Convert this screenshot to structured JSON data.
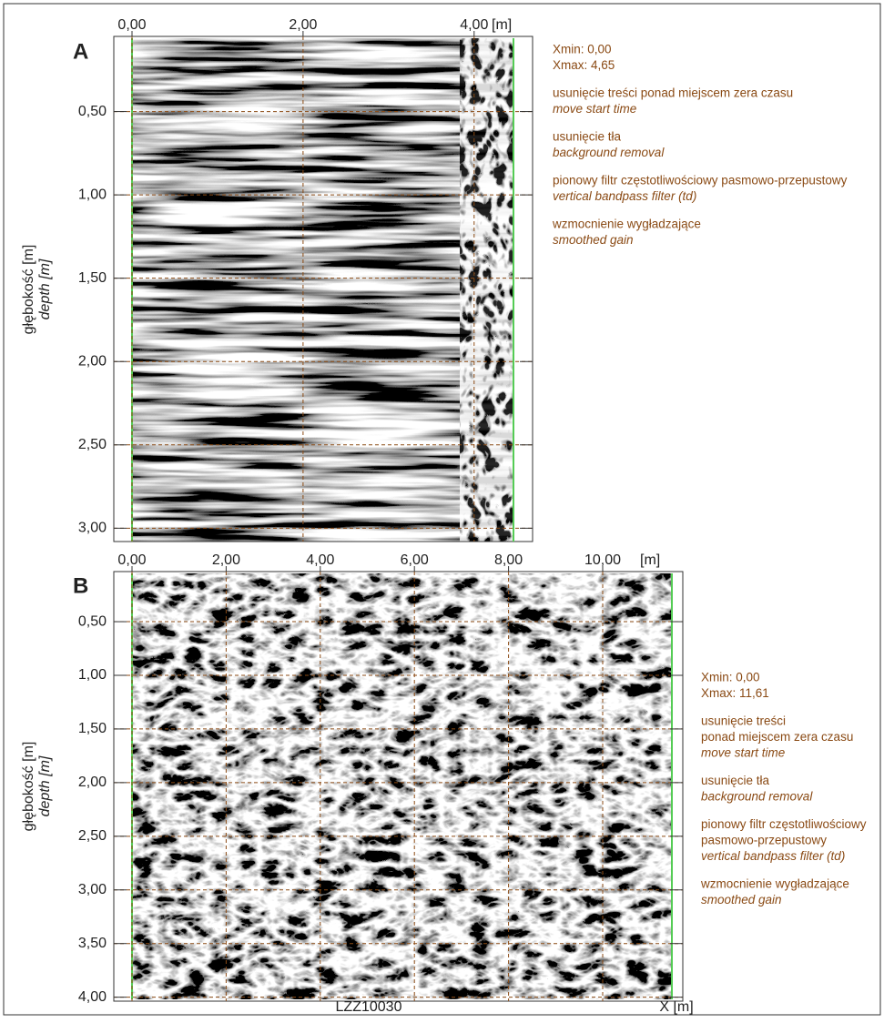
{
  "chart_data": [
    {
      "type": "radargram",
      "label": "A",
      "x_unit": "[m]",
      "ylabel": "głębokość [m]",
      "ylabel2": "depth [m]",
      "xlim": [
        0,
        4.46
      ],
      "ylim": [
        0.06,
        3.08
      ],
      "xticks": [
        {
          "value": 0,
          "label": "0,00"
        },
        {
          "value": 2,
          "label": "2,00"
        },
        {
          "value": 4,
          "label": "4,00"
        }
      ],
      "yticks": [
        {
          "value": 0.5,
          "label": "0,50"
        },
        {
          "value": 1,
          "label": "1,00"
        },
        {
          "value": 1.5,
          "label": "1,50"
        },
        {
          "value": 2,
          "label": "2,00"
        },
        {
          "value": 2.5,
          "label": "2,50"
        },
        {
          "value": 3,
          "label": "3,00"
        }
      ],
      "notes": [
        {
          "text": [
            "Xmin: 0,00",
            "Xmax: 4,65"
          ]
        },
        {
          "text": [
            "usunięcie treści ponad miejscem zera czasu"
          ],
          "italic": "move start time"
        },
        {
          "text": [
            "usunięcie tła"
          ],
          "italic": "background removal"
        },
        {
          "text": [
            "pionowy filtr częstotliwościowy pasmowo-przepustowy"
          ],
          "italic": "vertical bandpass filter (td)"
        },
        {
          "text": [
            "wzmocnienie wygładzające"
          ],
          "italic": "smoothed gain"
        }
      ]
    },
    {
      "type": "radargram",
      "label": "B",
      "x_unit": "[m]",
      "ylabel": "głębokość [m]",
      "ylabel2": "depth [m]",
      "xlim": [
        0,
        11.47
      ],
      "ylim": [
        0.05,
        4.02
      ],
      "xticks": [
        {
          "value": 0,
          "label": "0,00"
        },
        {
          "value": 2,
          "label": "2,00"
        },
        {
          "value": 4,
          "label": "4,00"
        },
        {
          "value": 6,
          "label": "6,00"
        },
        {
          "value": 8,
          "label": "8,00"
        },
        {
          "value": 10,
          "label": "10,00"
        }
      ],
      "yticks": [
        {
          "value": 0.5,
          "label": "0,50"
        },
        {
          "value": 1,
          "label": "1,00"
        },
        {
          "value": 1.5,
          "label": "1,50"
        },
        {
          "value": 2,
          "label": "2,00"
        },
        {
          "value": 2.5,
          "label": "2,50"
        },
        {
          "value": 3,
          "label": "3,00"
        },
        {
          "value": 3.5,
          "label": "3,50"
        },
        {
          "value": 4,
          "label": "4,00"
        }
      ],
      "notes": [
        {
          "text": [
            "Xmin: 0,00",
            "Xmax: 11,61"
          ]
        },
        {
          "text": [
            "usunięcie treści",
            "ponad miejscem zera czasu"
          ],
          "italic": "move start time"
        },
        {
          "text": [
            "usunięcie tła"
          ],
          "italic": "background removal"
        },
        {
          "text": [
            "pionowy filtr częstotliwościowy",
            "pasmowo-przepustowy"
          ],
          "italic": "vertical bandpass filter (td)"
        },
        {
          "text": [
            "wzmocnienie wygładzające"
          ],
          "italic": "smoothed gain"
        }
      ],
      "caption": "LZZ10030",
      "xlabel": "X [m]"
    }
  ]
}
